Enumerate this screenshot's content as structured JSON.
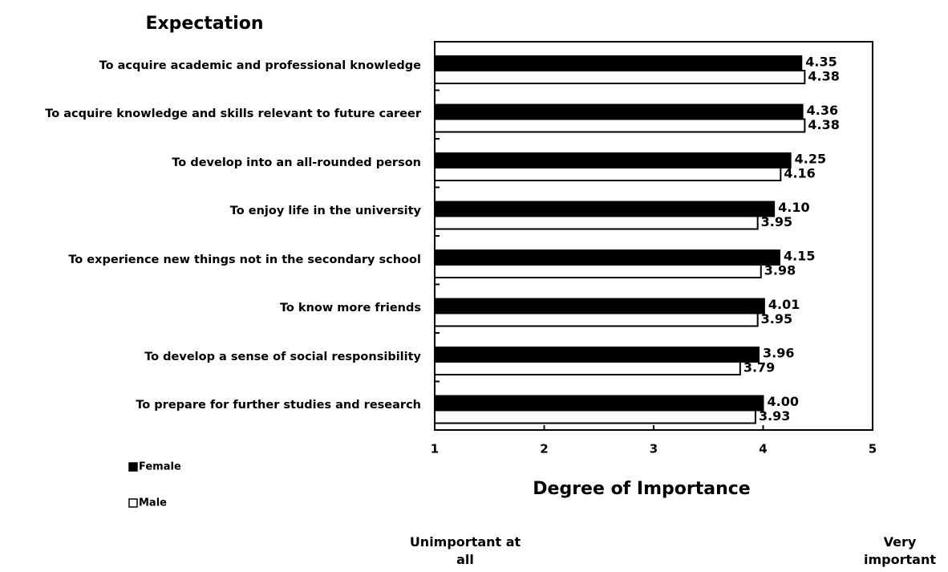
{
  "chart_data": {
    "type": "bar",
    "orientation": "horizontal",
    "title": "Expectation",
    "x_label": "Degree of Importance",
    "annotations": [
      "Unimportant at all",
      "Very important"
    ],
    "categories": [
      "To acquire academic and professional knowledge",
      "To acquire knowledge and skills relevant to future career",
      "To develop into an all-rounded person",
      "To enjoy life in the university",
      "To experience new things not in the secondary school",
      "To know more friends",
      "To develop a sense of social responsibility",
      "To prepare for further studies and research"
    ],
    "series": [
      {
        "name": "Female",
        "color": "#000000",
        "values": [
          4.35,
          4.36,
          4.25,
          4.1,
          4.15,
          4.01,
          3.96,
          4.0
        ],
        "value_labels": [
          "4.35",
          "4.36",
          "4.25",
          "4.10",
          "4.15",
          "4.01",
          "3.96",
          "4.00"
        ]
      },
      {
        "name": "Male",
        "color": "#ffffff",
        "values": [
          4.38,
          4.38,
          4.16,
          3.95,
          3.98,
          3.95,
          3.79,
          3.93
        ],
        "value_labels": [
          "4.38",
          "4.38",
          "4.16",
          "3.95",
          "3.98",
          "3.95",
          "3.79",
          "3.93"
        ]
      }
    ],
    "xlim": [
      1,
      5
    ],
    "xticks": [
      1,
      2,
      3,
      4,
      5
    ],
    "grid": false
  }
}
